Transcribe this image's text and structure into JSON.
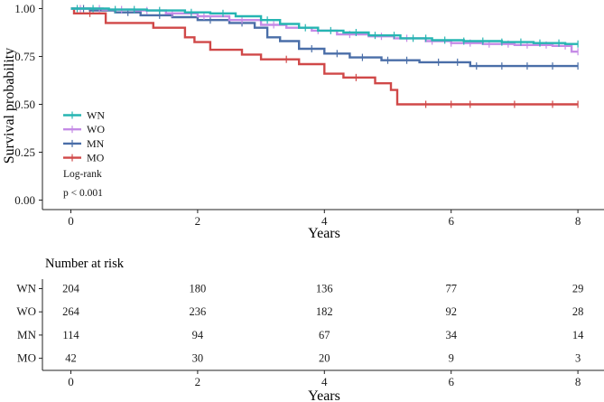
{
  "chart_data": {
    "type": "line",
    "subtype": "kaplan-meier",
    "xlabel": "Years",
    "ylabel": "Survival probability",
    "xlim": [
      -0.45,
      8.3
    ],
    "ylim": [
      0,
      1.02
    ],
    "xticks": [
      "0",
      "2",
      "4",
      "6",
      "8"
    ],
    "yticks": [
      "0.00",
      "0.25",
      "0.50",
      "0.75",
      "1.00"
    ],
    "grid": false,
    "legend_position": "lower-left",
    "test_label": "Log-rank",
    "p_value": "p < 0.001",
    "series": [
      {
        "name": "WN",
        "color": "#26b5b2",
        "x": [
          0,
          0.6,
          1.2,
          1.8,
          2.2,
          2.6,
          3.0,
          3.3,
          3.6,
          3.9,
          4.3,
          4.7,
          5.2,
          5.7,
          6.2,
          6.8,
          7.3,
          7.8,
          8.0
        ],
        "y": [
          1.0,
          0.995,
          0.99,
          0.98,
          0.975,
          0.96,
          0.94,
          0.92,
          0.9,
          0.885,
          0.875,
          0.86,
          0.845,
          0.835,
          0.83,
          0.825,
          0.82,
          0.815,
          0.815
        ],
        "censors": [
          0.1,
          0.35,
          0.7,
          1.0,
          1.4,
          1.9,
          2.4,
          3.1,
          3.7,
          4.1,
          4.5,
          4.8,
          5.1,
          5.4,
          5.6,
          5.9,
          6.2,
          6.5,
          6.8,
          7.1,
          7.4,
          7.7,
          8.0
        ]
      },
      {
        "name": "WO",
        "color": "#c58be6",
        "x": [
          0,
          0.5,
          1.0,
          1.5,
          2.0,
          2.5,
          3.0,
          3.4,
          3.8,
          4.2,
          4.7,
          5.1,
          5.6,
          6.0,
          6.5,
          7.0,
          7.6,
          7.9,
          8.0
        ],
        "y": [
          1.0,
          0.995,
          0.99,
          0.975,
          0.96,
          0.94,
          0.915,
          0.9,
          0.885,
          0.865,
          0.855,
          0.845,
          0.83,
          0.82,
          0.815,
          0.81,
          0.805,
          0.775,
          0.775
        ],
        "censors": [
          0.15,
          0.45,
          0.8,
          1.2,
          1.6,
          2.1,
          2.7,
          3.2,
          3.9,
          4.4,
          4.9,
          5.3,
          5.7,
          6.0,
          6.3,
          6.6,
          6.9,
          7.2,
          7.5,
          7.8,
          8.0
        ]
      },
      {
        "name": "MN",
        "color": "#4a6ea8",
        "x": [
          0,
          0.3,
          0.7,
          1.1,
          1.6,
          2.0,
          2.5,
          2.9,
          3.1,
          3.3,
          3.6,
          4.0,
          4.4,
          4.9,
          5.5,
          5.9,
          6.3,
          8.0
        ],
        "y": [
          1.0,
          0.99,
          0.98,
          0.965,
          0.955,
          0.94,
          0.925,
          0.9,
          0.85,
          0.83,
          0.79,
          0.765,
          0.745,
          0.73,
          0.72,
          0.72,
          0.7,
          0.7
        ],
        "censors": [
          0.2,
          0.9,
          1.4,
          2.2,
          2.7,
          3.8,
          4.2,
          4.6,
          5.0,
          5.3,
          5.8,
          6.1,
          6.4,
          6.8,
          7.2,
          7.6,
          8.0
        ]
      },
      {
        "name": "MO",
        "color": "#d04848",
        "x": [
          0,
          0.05,
          0.55,
          1.3,
          1.8,
          1.95,
          2.2,
          2.7,
          3.0,
          3.6,
          4.0,
          4.3,
          4.8,
          5.05,
          5.15,
          8.0
        ],
        "y": [
          1.0,
          0.975,
          0.925,
          0.9,
          0.85,
          0.825,
          0.785,
          0.76,
          0.735,
          0.71,
          0.66,
          0.64,
          0.61,
          0.575,
          0.5,
          0.5
        ],
        "censors": [
          0.3,
          3.4,
          4.5,
          5.6,
          6.0,
          6.3,
          7.0,
          7.6,
          8.0
        ]
      }
    ]
  },
  "risk_table": {
    "title": "Number at risk",
    "xlabel": "Years",
    "xticks": [
      "0",
      "2",
      "4",
      "6",
      "8"
    ],
    "rows": [
      {
        "name": "WN",
        "values": [
          "204",
          "180",
          "136",
          "77",
          "29"
        ]
      },
      {
        "name": "WO",
        "values": [
          "264",
          "236",
          "182",
          "92",
          "28"
        ]
      },
      {
        "name": "MN",
        "values": [
          "114",
          "94",
          "67",
          "34",
          "14"
        ]
      },
      {
        "name": "MO",
        "values": [
          "42",
          "30",
          "20",
          "9",
          "3"
        ]
      }
    ]
  }
}
